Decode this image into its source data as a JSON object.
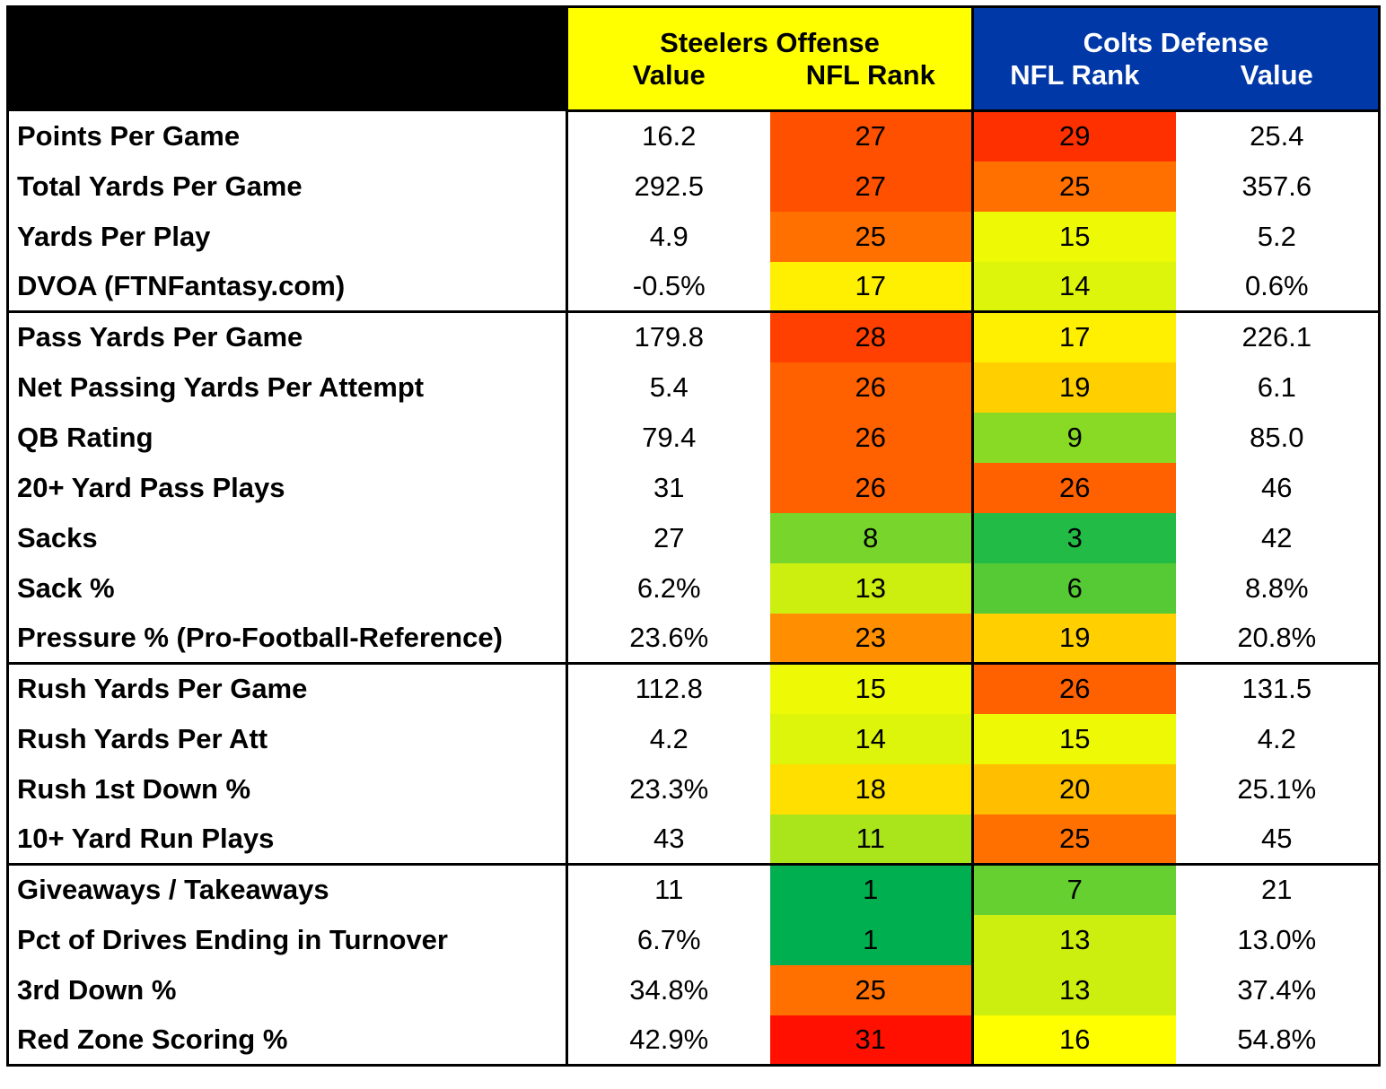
{
  "chart_data": {
    "type": "table",
    "header": {
      "group_left": "Steelers Offense",
      "group_right": "Colts Defense",
      "columns": [
        "Value",
        "NFL Rank",
        "NFL Rank",
        "Value"
      ]
    },
    "colors": {
      "steelers_header": "#FFFF00",
      "colts_header": "#0038A8",
      "corner": "#000000",
      "rank_scale_best": "#00B050",
      "rank_scale_mid": "#FFFF00",
      "rank_scale_worst": "#FF0000"
    },
    "groups": [
      {
        "rows": [
          {
            "label": "Points Per Game",
            "off_value": "16.2",
            "off_rank": 27,
            "def_rank": 29,
            "def_value": "25.4"
          },
          {
            "label": "Total Yards Per Game",
            "off_value": "292.5",
            "off_rank": 27,
            "def_rank": 25,
            "def_value": "357.6"
          },
          {
            "label": "Yards Per Play",
            "off_value": "4.9",
            "off_rank": 25,
            "def_rank": 15,
            "def_value": "5.2"
          },
          {
            "label": "DVOA (FTNFantasy.com)",
            "off_value": "-0.5%",
            "off_rank": 17,
            "def_rank": 14,
            "def_value": "0.6%"
          }
        ]
      },
      {
        "rows": [
          {
            "label": "Pass Yards Per Game",
            "off_value": "179.8",
            "off_rank": 28,
            "def_rank": 17,
            "def_value": "226.1"
          },
          {
            "label": "Net Passing Yards Per Attempt",
            "off_value": "5.4",
            "off_rank": 26,
            "def_rank": 19,
            "def_value": "6.1"
          },
          {
            "label": "QB Rating",
            "off_value": "79.4",
            "off_rank": 26,
            "def_rank": 9,
            "def_value": "85.0"
          },
          {
            "label": "20+ Yard Pass Plays",
            "off_value": "31",
            "off_rank": 26,
            "def_rank": 26,
            "def_value": "46"
          },
          {
            "label": "Sacks",
            "off_value": "27",
            "off_rank": 8,
            "def_rank": 3,
            "def_value": "42"
          },
          {
            "label": "Sack %",
            "off_value": "6.2%",
            "off_rank": 13,
            "def_rank": 6,
            "def_value": "8.8%"
          },
          {
            "label": "Pressure % (Pro-Football-Reference)",
            "off_value": "23.6%",
            "off_rank": 23,
            "def_rank": 19,
            "def_value": "20.8%"
          }
        ]
      },
      {
        "rows": [
          {
            "label": "Rush Yards Per Game",
            "off_value": "112.8",
            "off_rank": 15,
            "def_rank": 26,
            "def_value": "131.5"
          },
          {
            "label": "Rush Yards Per Att",
            "off_value": "4.2",
            "off_rank": 14,
            "def_rank": 15,
            "def_value": "4.2"
          },
          {
            "label": "Rush 1st Down %",
            "off_value": "23.3%",
            "off_rank": 18,
            "def_rank": 20,
            "def_value": "25.1%"
          },
          {
            "label": "10+ Yard Run Plays",
            "off_value": "43",
            "off_rank": 11,
            "def_rank": 25,
            "def_value": "45"
          }
        ]
      },
      {
        "rows": [
          {
            "label": "Giveaways / Takeaways",
            "off_value": "11",
            "off_rank": 1,
            "def_rank": 7,
            "def_value": "21"
          },
          {
            "label": "Pct of Drives Ending in Turnover",
            "off_value": "6.7%",
            "off_rank": 1,
            "def_rank": 13,
            "def_value": "13.0%"
          },
          {
            "label": "3rd Down %",
            "off_value": "34.8%",
            "off_rank": 25,
            "def_rank": 13,
            "def_value": "37.4%"
          },
          {
            "label": "Red Zone Scoring %",
            "off_value": "42.9%",
            "off_rank": 31,
            "def_rank": 16,
            "def_value": "54.8%"
          }
        ]
      }
    ]
  }
}
